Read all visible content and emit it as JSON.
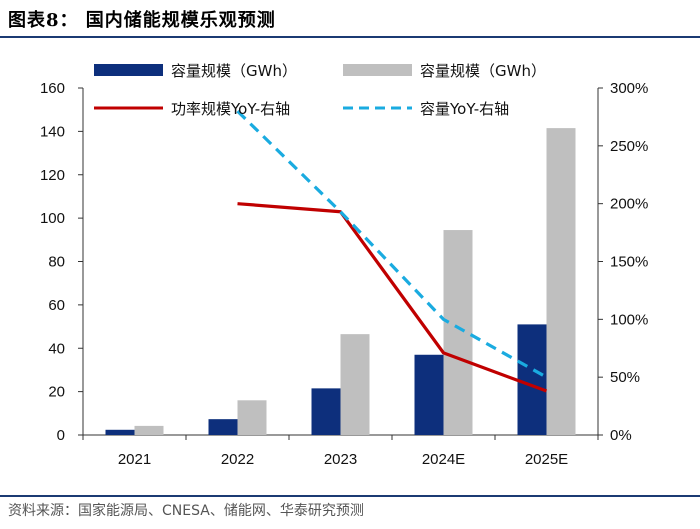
{
  "figure_title": "图表8：  国内储能规模乐观预测",
  "source": "资料来源：国家能源局、CNESA、储能网、华泰研究预测",
  "colors": {
    "power_bar": "#0d2f7c",
    "capacity_bar": "#bfbfbf",
    "power_line": "#c00000",
    "capacity_line": "#1aabe0",
    "rule": "#1b3a73"
  },
  "chart_data": {
    "type": "bar",
    "title": "国内储能规模乐观预测",
    "categories": [
      "2021",
      "2022",
      "2023",
      "2024E",
      "2025E"
    ],
    "y_left": {
      "ylim": [
        0,
        160
      ],
      "ticks": [
        "0",
        "20",
        "40",
        "60",
        "80",
        "100",
        "120",
        "140",
        "160"
      ],
      "tick_values": [
        0,
        20,
        40,
        60,
        80,
        100,
        120,
        140,
        160
      ]
    },
    "y_right": {
      "ylim": [
        0,
        300
      ],
      "ticks": [
        "0%",
        "50%",
        "100%",
        "150%",
        "200%",
        "250%",
        "300%"
      ],
      "tick_values": [
        0,
        50,
        100,
        150,
        200,
        250,
        300
      ]
    },
    "series": [
      {
        "name": "容量规模（GWh）",
        "legend": "容量规模（GWh）",
        "kind": "bar",
        "axis": "left",
        "values": [
          2.4,
          7.3,
          21.5,
          37,
          51
        ]
      },
      {
        "name": "容量规模（GWh）",
        "legend": "容量规模（GWh）",
        "kind": "bar",
        "axis": "left",
        "values": [
          4.2,
          16,
          46.5,
          94.5,
          141.5
        ]
      },
      {
        "name": "功率规模YoY-右轴",
        "legend": "功率规模YoY-右轴",
        "kind": "line",
        "axis": "right",
        "values": [
          null,
          200,
          193,
          71,
          38
        ]
      },
      {
        "name": "容量YoY-右轴",
        "legend": "容量YoY-右轴",
        "kind": "line",
        "axis": "right",
        "values": [
          null,
          280,
          193,
          100,
          50
        ]
      }
    ]
  }
}
